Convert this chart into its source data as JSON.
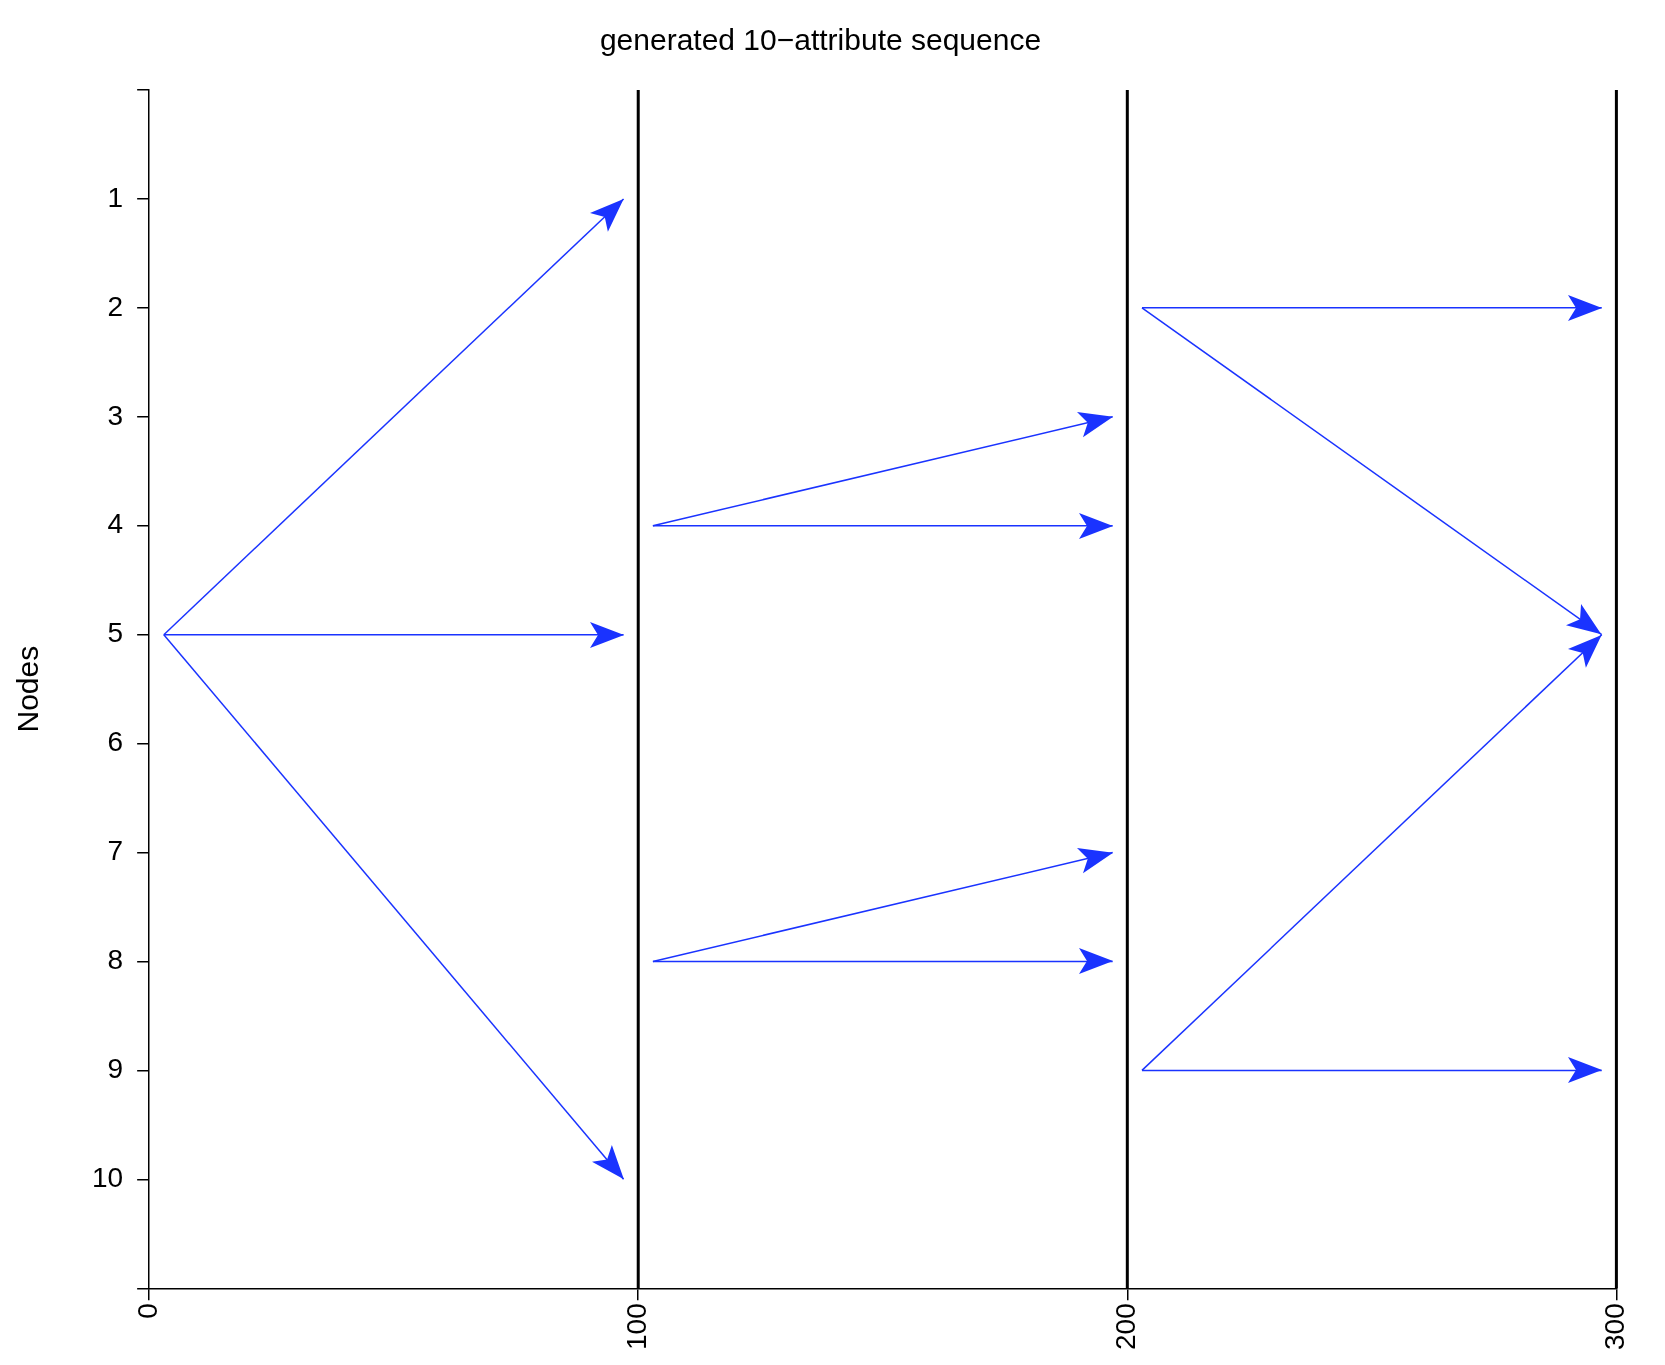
{
  "chart_data": {
    "type": "line",
    "title": "generated 10−attribute sequence",
    "ylabel": "Nodes",
    "marker": "none",
    "line_style": "solid",
    "grid": false,
    "legend": false,
    "xlim": [
      0,
      300
    ],
    "xticks": [
      0,
      100,
      200,
      300
    ],
    "ylim": [
      11,
      0
    ],
    "yticks": [
      {
        "value": 0,
        "label": null
      },
      1,
      2,
      3,
      4,
      5,
      6,
      7,
      8,
      9,
      10,
      {
        "value": 11,
        "label": null
      }
    ],
    "ref_lines": [
      {
        "axis": "x",
        "value": 100,
        "color": "#000000"
      },
      {
        "axis": "x",
        "value": 200,
        "color": "#000000"
      }
    ],
    "series": [
      {
        "color": "#1a33ff",
        "x": [
          3,
          97
        ],
        "values": [
          5,
          1
        ]
      },
      {
        "color": "#1a33ff",
        "x": [
          3,
          97
        ],
        "values": [
          5,
          5
        ]
      },
      {
        "color": "#1a33ff",
        "x": [
          3,
          97
        ],
        "values": [
          5,
          10
        ]
      },
      {
        "color": "#1a33ff",
        "x": [
          103,
          197
        ],
        "values": [
          4,
          3
        ]
      },
      {
        "color": "#1a33ff",
        "x": [
          103,
          197
        ],
        "values": [
          4,
          4
        ]
      },
      {
        "color": "#1a33ff",
        "x": [
          103,
          197
        ],
        "values": [
          8,
          7
        ]
      },
      {
        "color": "#1a33ff",
        "x": [
          103,
          197
        ],
        "values": [
          8,
          8
        ]
      },
      {
        "color": "#1a33ff",
        "x": [
          203,
          297
        ],
        "values": [
          2,
          2
        ]
      },
      {
        "color": "#1a33ff",
        "x": [
          203,
          297
        ],
        "values": [
          2,
          5
        ]
      },
      {
        "color": "#1a33ff",
        "x": [
          203,
          297
        ],
        "values": [
          9,
          5
        ]
      },
      {
        "color": "#1a33ff",
        "x": [
          203,
          297
        ],
        "values": [
          9,
          9
        ]
      }
    ]
  }
}
